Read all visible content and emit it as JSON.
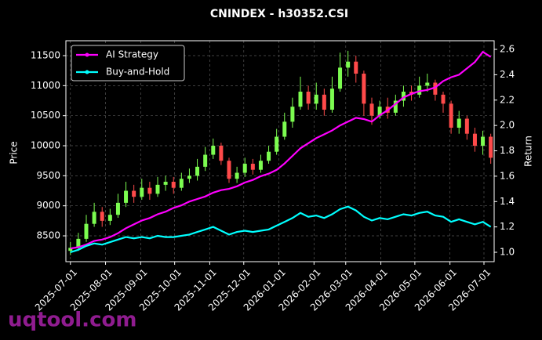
{
  "chart_data": {
    "type": "candlestick",
    "title": "CNINDEX - h30352.CSI",
    "ylabel": "Price",
    "y2label": "Return",
    "watermark": "uqtool.com",
    "x": [
      "2025-07-01",
      "2025-07-08",
      "2025-07-15",
      "2025-07-22",
      "2025-07-29",
      "2025-08-05",
      "2025-08-12",
      "2025-08-19",
      "2025-08-26",
      "2025-09-02",
      "2025-09-09",
      "2025-09-16",
      "2025-09-23",
      "2025-09-30",
      "2025-10-07",
      "2025-10-14",
      "2025-10-21",
      "2025-10-28",
      "2025-11-04",
      "2025-11-11",
      "2025-11-18",
      "2025-11-25",
      "2025-12-02",
      "2025-12-09",
      "2025-12-16",
      "2025-12-23",
      "2025-12-30",
      "2026-01-06",
      "2026-01-13",
      "2026-01-20",
      "2026-01-27",
      "2026-02-03",
      "2026-02-10",
      "2026-02-17",
      "2026-02-24",
      "2026-03-03",
      "2026-03-10",
      "2026-03-17",
      "2026-03-24",
      "2026-03-31",
      "2026-04-07",
      "2026-04-14",
      "2026-04-21",
      "2026-04-28",
      "2026-05-05",
      "2026-05-12",
      "2026-05-19",
      "2026-05-26",
      "2026-06-02",
      "2026-06-09",
      "2026-06-16",
      "2026-06-23",
      "2026-06-30",
      "2026-07-07"
    ],
    "open": [
      8250,
      8300,
      8450,
      8700,
      8900,
      8750,
      8850,
      9050,
      9250,
      9150,
      9300,
      9200,
      9350,
      9400,
      9300,
      9450,
      9500,
      9650,
      9850,
      10000,
      9750,
      9450,
      9550,
      9700,
      9600,
      9750,
      9900,
      10150,
      10400,
      10650,
      10900,
      10700,
      10850,
      10600,
      10950,
      11300,
      11400,
      11200,
      10700,
      10500,
      10650,
      10550,
      10750,
      10900,
      10850,
      11000,
      11050,
      10850,
      10700,
      10300,
      10450,
      10200,
      10000,
      10150
    ],
    "high": [
      8400,
      8550,
      8850,
      9050,
      8980,
      8950,
      9200,
      9400,
      9350,
      9450,
      9400,
      9480,
      9500,
      9480,
      9550,
      9620,
      9780,
      9980,
      10120,
      10050,
      9800,
      9650,
      9800,
      9780,
      9850,
      10000,
      10280,
      10550,
      10800,
      11150,
      11000,
      11050,
      10950,
      11150,
      11550,
      11580,
      11500,
      11250,
      10800,
      10750,
      10800,
      10850,
      11000,
      11000,
      11150,
      11200,
      11100,
      10900,
      10750,
      10580,
      10500,
      10300,
      10250,
      10200
    ],
    "low": [
      8180,
      8250,
      8400,
      8650,
      8650,
      8680,
      8800,
      8980,
      9050,
      9100,
      9100,
      9150,
      9250,
      9200,
      9250,
      9380,
      9420,
      9580,
      9780,
      9680,
      9380,
      9380,
      9480,
      9520,
      9550,
      9700,
      9850,
      10100,
      10300,
      10600,
      10600,
      10600,
      10500,
      10550,
      10900,
      11150,
      11050,
      10500,
      10350,
      10450,
      10450,
      10500,
      10650,
      10750,
      10800,
      10900,
      10750,
      10550,
      10200,
      10200,
      10100,
      9900,
      9850,
      9700
    ],
    "close": [
      8300,
      8450,
      8700,
      8900,
      8750,
      8850,
      9050,
      9250,
      9150,
      9300,
      9200,
      9350,
      9400,
      9300,
      9450,
      9500,
      9650,
      9850,
      10000,
      9750,
      9450,
      9550,
      9700,
      9600,
      9750,
      9900,
      10150,
      10400,
      10650,
      10900,
      10700,
      10850,
      10600,
      10950,
      11300,
      11400,
      11200,
      10700,
      10500,
      10650,
      10550,
      10750,
      10900,
      10850,
      11000,
      11050,
      10850,
      10700,
      10300,
      10450,
      10200,
      10000,
      10150,
      9800
    ],
    "up_color": "#7cfc50",
    "down_color": "#ff4a4a",
    "series": [
      {
        "name": "AI Strategy",
        "color": "#ff00ff",
        "axis": "y2",
        "values": [
          1.03,
          1.04,
          1.06,
          1.09,
          1.1,
          1.12,
          1.15,
          1.19,
          1.22,
          1.25,
          1.27,
          1.3,
          1.32,
          1.35,
          1.37,
          1.4,
          1.42,
          1.44,
          1.47,
          1.49,
          1.5,
          1.52,
          1.55,
          1.57,
          1.6,
          1.62,
          1.65,
          1.7,
          1.76,
          1.82,
          1.86,
          1.9,
          1.93,
          1.96,
          2.0,
          2.03,
          2.06,
          2.05,
          2.03,
          2.08,
          2.12,
          2.17,
          2.22,
          2.25,
          2.27,
          2.28,
          2.3,
          2.35,
          2.38,
          2.4,
          2.45,
          2.5,
          2.58,
          2.54
        ]
      },
      {
        "name": "Buy-and-Hold",
        "color": "#00ffff",
        "axis": "y2",
        "values": [
          1.0,
          1.02,
          1.05,
          1.07,
          1.06,
          1.08,
          1.1,
          1.12,
          1.11,
          1.12,
          1.11,
          1.13,
          1.12,
          1.12,
          1.13,
          1.14,
          1.16,
          1.18,
          1.2,
          1.17,
          1.14,
          1.16,
          1.17,
          1.16,
          1.17,
          1.18,
          1.21,
          1.24,
          1.27,
          1.31,
          1.28,
          1.29,
          1.27,
          1.3,
          1.34,
          1.36,
          1.33,
          1.28,
          1.25,
          1.27,
          1.26,
          1.28,
          1.3,
          1.29,
          1.31,
          1.32,
          1.29,
          1.28,
          1.24,
          1.26,
          1.24,
          1.22,
          1.24,
          1.2
        ]
      }
    ],
    "xlim": [
      "2025-06-27",
      "2026-07-10"
    ],
    "xticks": [
      "2025-07-01",
      "2025-08-01",
      "2025-09-01",
      "2025-10-01",
      "2025-11-01",
      "2025-12-01",
      "2026-01-01",
      "2026-02-01",
      "2026-03-01",
      "2026-04-01",
      "2026-05-01",
      "2026-06-01",
      "2026-07-01"
    ],
    "ylim": [
      8070,
      11748
    ],
    "yticks": [
      8500,
      9000,
      9500,
      10000,
      10500,
      11000,
      11500
    ],
    "y2lim": [
      0.926,
      2.668
    ],
    "y2ticks": [
      {
        "value": 1,
        "label": "1.0"
      },
      1.2,
      1.4,
      1.6,
      1.8,
      {
        "value": 2,
        "label": "2.0"
      },
      2.2,
      2.4,
      2.6
    ],
    "grid": true,
    "legend": "upper left"
  }
}
